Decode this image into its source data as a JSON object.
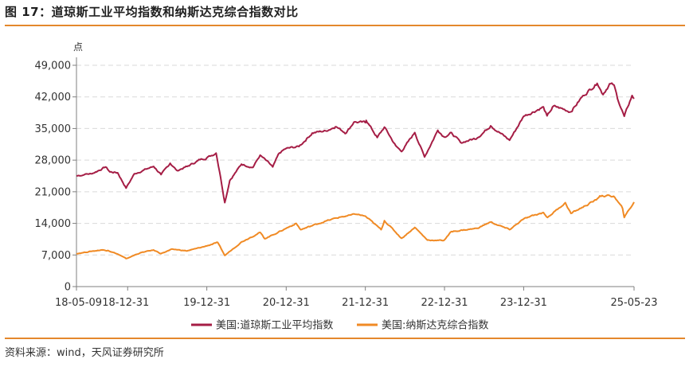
{
  "figure": {
    "title": "图 17：道琼斯工业平均指数和纳斯达克综合指数对比",
    "source": "资料来源：wind，天风证券研究所"
  },
  "colors": {
    "dow": "#a51d45",
    "nasdaq": "#f08a24",
    "accent_rule": "#e4882c",
    "grid": "#d9d9d9",
    "axis": "#7f7f7f"
  },
  "chart_data": {
    "type": "line",
    "title": "",
    "ylabel": "点",
    "xlabel": "",
    "ylim": [
      0,
      49000
    ],
    "yticks": [
      0,
      7000,
      14000,
      21000,
      28000,
      35000,
      42000,
      49000
    ],
    "ytick_labels": [
      "0",
      "7,000",
      "14,000",
      "21,000",
      "28,000",
      "35,000",
      "42,000",
      "49,000"
    ],
    "xlim": [
      "2018-05-09",
      "2025-05-23"
    ],
    "xticks": [
      "2018-05-09",
      "2018-12-31",
      "2019-12-31",
      "2020-12-31",
      "2021-12-31",
      "2022-12-31",
      "2023-12-31",
      "2025-05-23"
    ],
    "xtick_labels": [
      "18-05-09",
      "18-12-31",
      "19-12-31",
      "20-12-31",
      "21-12-31",
      "22-12-31",
      "23-12-31",
      "25-05-23"
    ],
    "grid": true,
    "legend": "bottom-center",
    "series": [
      {
        "name": "美国:道琼斯工业平均指数",
        "points": [
          [
            "2018-05-09",
            24500
          ],
          [
            "2018-06-15",
            24800
          ],
          [
            "2018-07-15",
            25000
          ],
          [
            "2018-08-15",
            25600
          ],
          [
            "2018-09-20",
            26500
          ],
          [
            "2018-10-10",
            25400
          ],
          [
            "2018-11-15",
            25200
          ],
          [
            "2018-12-24",
            21800
          ],
          [
            "2019-01-31",
            25000
          ],
          [
            "2019-03-15",
            25800
          ],
          [
            "2019-04-30",
            26600
          ],
          [
            "2019-06-03",
            24800
          ],
          [
            "2019-07-15",
            27300
          ],
          [
            "2019-08-15",
            25700
          ],
          [
            "2019-10-01",
            26600
          ],
          [
            "2019-11-30",
            28100
          ],
          [
            "2019-12-31",
            28500
          ],
          [
            "2020-02-12",
            29550
          ],
          [
            "2020-02-28",
            25400
          ],
          [
            "2020-03-23",
            18600
          ],
          [
            "2020-04-15",
            23500
          ],
          [
            "2020-06-08",
            27100
          ],
          [
            "2020-07-31",
            26400
          ],
          [
            "2020-09-02",
            29100
          ],
          [
            "2020-10-30",
            26500
          ],
          [
            "2020-11-30",
            29600
          ],
          [
            "2020-12-31",
            30600
          ],
          [
            "2021-02-28",
            31000
          ],
          [
            "2021-04-30",
            34000
          ],
          [
            "2021-06-30",
            34500
          ],
          [
            "2021-08-15",
            35400
          ],
          [
            "2021-10-04",
            34000
          ],
          [
            "2021-11-08",
            36400
          ],
          [
            "2021-12-31",
            36300
          ],
          [
            "2022-01-04",
            36800
          ],
          [
            "2022-02-24",
            33000
          ],
          [
            "2022-03-29",
            35300
          ],
          [
            "2022-05-20",
            31200
          ],
          [
            "2022-06-16",
            29900
          ],
          [
            "2022-08-16",
            34100
          ],
          [
            "2022-09-30",
            28700
          ],
          [
            "2022-11-30",
            34600
          ],
          [
            "2022-12-31",
            33100
          ],
          [
            "2023-02-01",
            34100
          ],
          [
            "2023-03-15",
            31900
          ],
          [
            "2023-05-31",
            32900
          ],
          [
            "2023-08-01",
            35600
          ],
          [
            "2023-10-27",
            32400
          ],
          [
            "2023-12-31",
            37700
          ],
          [
            "2024-03-31",
            39800
          ],
          [
            "2024-04-17",
            37800
          ],
          [
            "2024-05-17",
            40000
          ],
          [
            "2024-08-05",
            38700
          ],
          [
            "2024-09-30",
            42300
          ],
          [
            "2024-12-04",
            45000
          ],
          [
            "2024-12-31",
            42500
          ],
          [
            "2025-01-30",
            44900
          ],
          [
            "2025-02-20",
            44600
          ],
          [
            "2025-03-13",
            40800
          ],
          [
            "2025-04-08",
            37700
          ],
          [
            "2025-05-14",
            42300
          ],
          [
            "2025-05-23",
            41600
          ]
        ]
      },
      {
        "name": "美国:纳斯达克综合指数",
        "points": [
          [
            "2018-05-09",
            7300
          ],
          [
            "2018-07-15",
            7800
          ],
          [
            "2018-08-31",
            8100
          ],
          [
            "2018-10-01",
            8000
          ],
          [
            "2018-11-15",
            7200
          ],
          [
            "2018-12-24",
            6200
          ],
          [
            "2019-02-28",
            7500
          ],
          [
            "2019-04-30",
            8100
          ],
          [
            "2019-06-03",
            7300
          ],
          [
            "2019-07-26",
            8300
          ],
          [
            "2019-10-01",
            7900
          ],
          [
            "2019-12-31",
            9000
          ],
          [
            "2020-02-19",
            9800
          ],
          [
            "2020-03-23",
            6900
          ],
          [
            "2020-06-08",
            9900
          ],
          [
            "2020-09-02",
            12000
          ],
          [
            "2020-09-23",
            10600
          ],
          [
            "2020-12-31",
            12900
          ],
          [
            "2021-02-15",
            14000
          ],
          [
            "2021-03-08",
            12600
          ],
          [
            "2021-06-30",
            14500
          ],
          [
            "2021-09-07",
            15400
          ],
          [
            "2021-11-19",
            16000
          ],
          [
            "2021-12-31",
            15600
          ],
          [
            "2022-03-14",
            12600
          ],
          [
            "2022-03-29",
            14600
          ],
          [
            "2022-06-16",
            10700
          ],
          [
            "2022-08-16",
            13100
          ],
          [
            "2022-10-13",
            10300
          ],
          [
            "2022-12-28",
            10200
          ],
          [
            "2023-02-01",
            12200
          ],
          [
            "2023-05-31",
            12900
          ],
          [
            "2023-07-31",
            14300
          ],
          [
            "2023-10-27",
            12600
          ],
          [
            "2023-12-31",
            15000
          ],
          [
            "2024-03-31",
            16400
          ],
          [
            "2024-04-19",
            15300
          ],
          [
            "2024-07-10",
            18600
          ],
          [
            "2024-08-05",
            16200
          ],
          [
            "2024-11-30",
            19200
          ],
          [
            "2024-12-16",
            20100
          ],
          [
            "2025-02-18",
            20000
          ],
          [
            "2025-03-31",
            17300
          ],
          [
            "2025-04-08",
            15300
          ],
          [
            "2025-05-23",
            18700
          ]
        ]
      }
    ]
  }
}
